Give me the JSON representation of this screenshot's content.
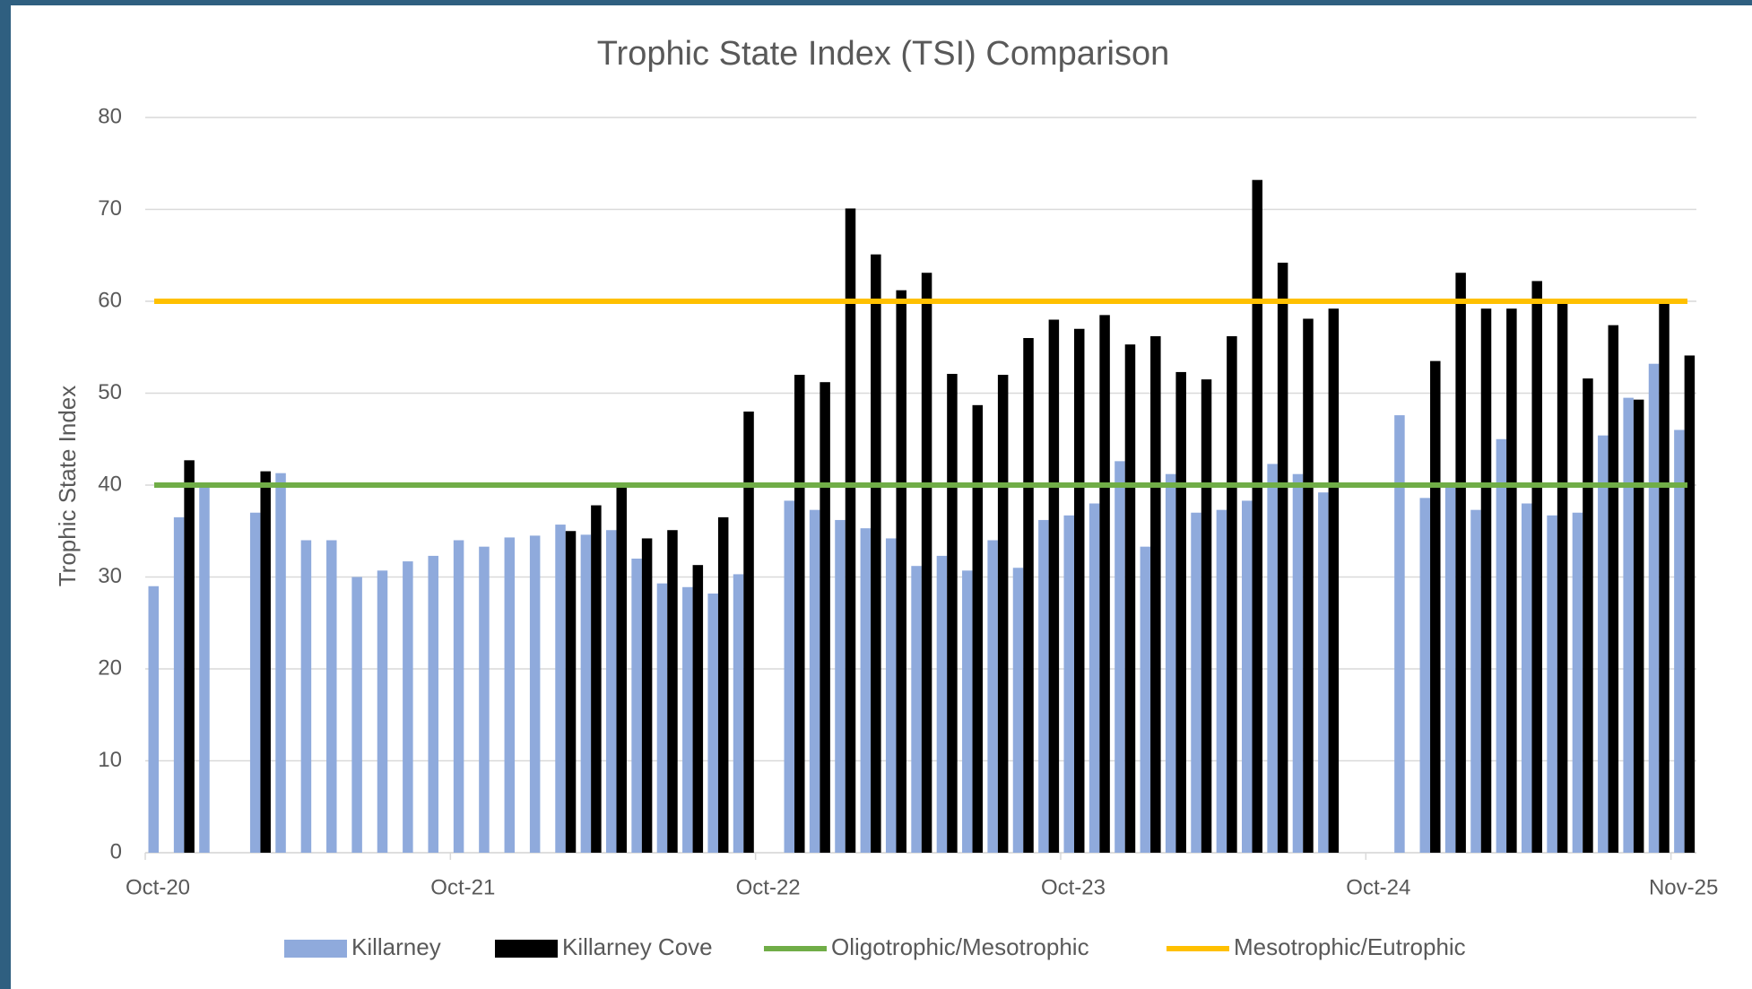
{
  "chart_data": {
    "type": "bar",
    "title": "Trophic State Index (TSI) Comparison",
    "y_label": "Trophic State Index",
    "categories": [
      "Oct-20",
      null,
      null,
      null,
      null,
      null,
      null,
      null,
      null,
      null,
      null,
      null,
      "Oct-21",
      null,
      null,
      null,
      null,
      null,
      null,
      null,
      null,
      null,
      null,
      null,
      "Oct-22",
      null,
      null,
      null,
      null,
      null,
      null,
      null,
      null,
      null,
      null,
      null,
      "Oct-23",
      null,
      null,
      null,
      null,
      null,
      null,
      null,
      null,
      null,
      null,
      null,
      "Oct-24",
      null,
      null,
      null,
      null,
      null,
      null,
      null,
      null,
      null,
      null,
      null,
      "Nov-25"
    ],
    "series": [
      {
        "name": "Killarney",
        "color": "#8faadc",
        "values": [
          29,
          36.5,
          40,
          null,
          37,
          41.3,
          34,
          34,
          30,
          30.7,
          31.7,
          32.3,
          34,
          33.3,
          34.3,
          34.5,
          35.7,
          34.6,
          35.1,
          32,
          29.3,
          28.9,
          28.2,
          30.3,
          null,
          38.3,
          37.3,
          36.2,
          35.3,
          34.2,
          31.2,
          32.3,
          30.7,
          34,
          31,
          36.2,
          36.7,
          38,
          42.6,
          33.3,
          41.2,
          37,
          37.3,
          38.3,
          42.3,
          41.2,
          39.2,
          null,
          null,
          47.6,
          38.6,
          40,
          37.3,
          45,
          38,
          36.7,
          37,
          45.4,
          49.5,
          53.2,
          46
        ]
      },
      {
        "name": "Killarney Cove",
        "color": "#000000",
        "values": [
          null,
          42.7,
          null,
          null,
          41.5,
          null,
          null,
          null,
          null,
          null,
          null,
          null,
          null,
          null,
          null,
          null,
          35,
          37.8,
          40,
          34.2,
          35.1,
          31.3,
          36.5,
          48,
          null,
          52,
          51.2,
          70.1,
          65.1,
          61.2,
          63.1,
          52.1,
          48.7,
          52,
          56,
          58,
          57,
          58.5,
          55.3,
          56.2,
          52.3,
          51.5,
          56.2,
          73.2,
          64.2,
          58.1,
          59.2,
          null,
          null,
          null,
          53.5,
          63.1,
          59.2,
          59.2,
          62.2,
          60,
          51.6,
          57.4,
          49.3,
          60,
          54.1
        ]
      }
    ],
    "reference_lines": [
      {
        "name": "Oligotrophic/Mesotrophic",
        "color": "#70ad47",
        "value": 40
      },
      {
        "name": "Mesotrophic/Eutrophic",
        "color": "#ffc000",
        "value": 60
      }
    ],
    "ylim": [
      0,
      80
    ],
    "yticks": [
      0,
      10,
      20,
      30,
      40,
      50,
      60,
      70,
      80
    ],
    "grid": true
  }
}
